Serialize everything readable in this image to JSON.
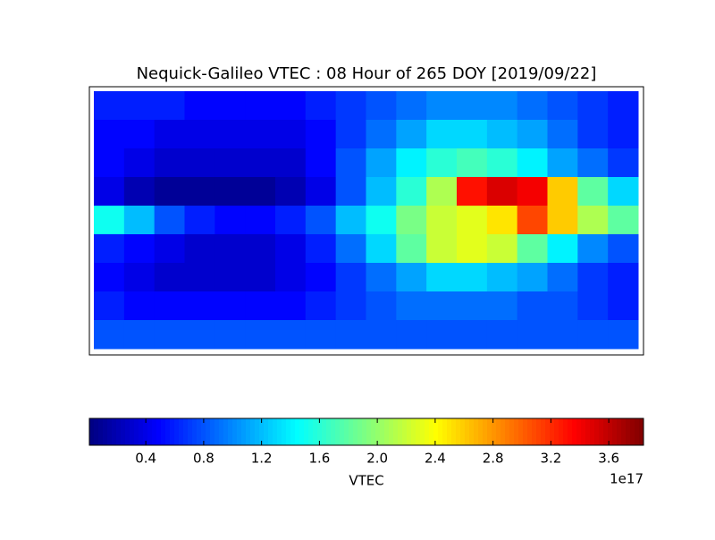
{
  "chart_data": {
    "type": "heatmap",
    "title": "Nequick-Galileo VTEC : 08 Hour of 265 DOY [2019/09/22]",
    "z": [
      [
        0.6,
        0.6,
        0.6,
        0.5,
        0.5,
        0.5,
        0.5,
        0.6,
        0.7,
        0.8,
        0.9,
        1.0,
        1.0,
        1.0,
        0.9,
        0.8,
        0.7,
        0.6
      ],
      [
        0.5,
        0.5,
        0.4,
        0.4,
        0.4,
        0.4,
        0.4,
        0.5,
        0.7,
        0.9,
        1.1,
        1.3,
        1.3,
        1.2,
        1.1,
        0.9,
        0.7,
        0.6
      ],
      [
        0.5,
        0.4,
        0.3,
        0.3,
        0.3,
        0.3,
        0.3,
        0.5,
        0.8,
        1.1,
        1.4,
        1.6,
        1.7,
        1.6,
        1.4,
        1.1,
        0.9,
        0.7
      ],
      [
        0.4,
        0.2,
        0.1,
        0.1,
        0.1,
        0.1,
        0.2,
        0.4,
        0.8,
        1.2,
        1.6,
        2.1,
        3.3,
        3.5,
        3.4,
        2.6,
        1.8,
        1.3
      ],
      [
        1.5,
        1.2,
        0.8,
        0.6,
        0.5,
        0.5,
        0.6,
        0.8,
        1.2,
        1.5,
        1.9,
        2.2,
        2.3,
        2.5,
        3.1,
        2.6,
        2.1,
        1.8
      ],
      [
        0.6,
        0.5,
        0.4,
        0.3,
        0.3,
        0.3,
        0.4,
        0.6,
        0.9,
        1.3,
        1.8,
        2.2,
        2.3,
        2.2,
        1.8,
        1.4,
        1.0,
        0.8
      ],
      [
        0.5,
        0.4,
        0.3,
        0.3,
        0.3,
        0.3,
        0.4,
        0.5,
        0.7,
        0.9,
        1.1,
        1.3,
        1.3,
        1.2,
        1.1,
        0.9,
        0.7,
        0.6
      ],
      [
        0.6,
        0.5,
        0.5,
        0.5,
        0.5,
        0.5,
        0.5,
        0.6,
        0.7,
        0.8,
        0.9,
        0.9,
        0.9,
        0.9,
        0.8,
        0.8,
        0.7,
        0.6
      ],
      [
        0.8,
        0.8,
        0.8,
        0.8,
        0.8,
        0.8,
        0.8,
        0.8,
        0.8,
        0.8,
        0.8,
        0.8,
        0.8,
        0.8,
        0.8,
        0.8,
        0.8,
        0.8
      ]
    ],
    "colormap": "jet",
    "colorbar": {
      "label": "VTEC",
      "offset_label": "1e17",
      "lim": [
        0.01,
        3.84
      ],
      "ticks": [
        0.4,
        0.8,
        1.2,
        1.6,
        {
          "value": 2.0,
          "label": "2.0"
        },
        2.4,
        2.8,
        3.2,
        3.6
      ]
    }
  }
}
